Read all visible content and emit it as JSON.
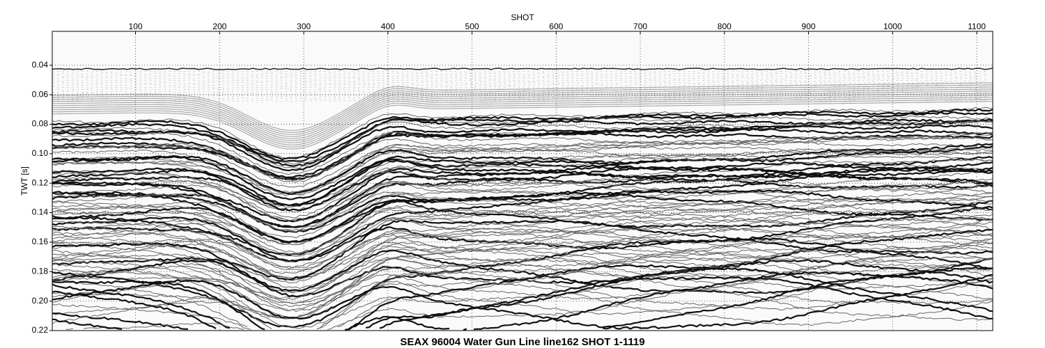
{
  "chart_data": {
    "type": "seismic",
    "title": "SEAX 96004 Water Gun Line line162 SHOT 1-1119",
    "x_label": "SHOT",
    "y_label": "TWT [s]",
    "xlim": [
      1,
      1119
    ],
    "xticks": [
      100,
      200,
      300,
      400,
      500,
      600,
      700,
      800,
      900,
      1000,
      1100
    ],
    "ylim": [
      0.017,
      0.22
    ],
    "yticks": [
      0.04,
      0.06,
      0.08,
      {
        "value": 0.1,
        "label": "0.10"
      },
      {
        "value": 0.12,
        "label": "0.12"
      },
      {
        "value": 0.14,
        "label": "0.14"
      },
      {
        "value": 0.16,
        "label": "0.16"
      },
      {
        "value": 0.18,
        "label": "0.18"
      },
      {
        "value": 0.2,
        "label": "0.20"
      },
      {
        "value": 0.22,
        "label": "0.22"
      }
    ],
    "y_inverted": true,
    "grid": true
  }
}
